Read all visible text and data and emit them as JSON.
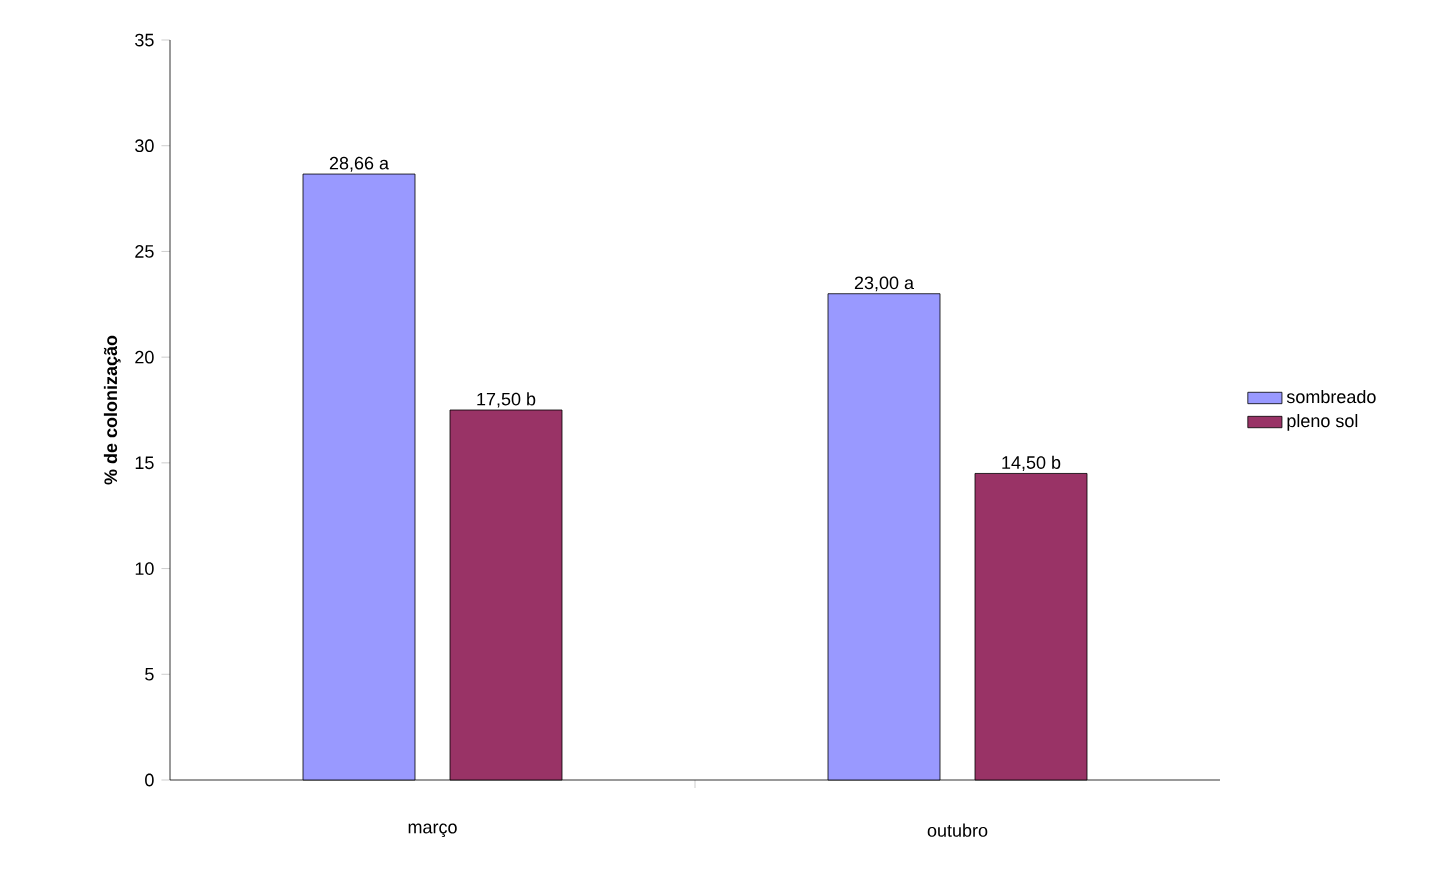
{
  "chart_data": {
    "type": "bar",
    "ylabel": "% de colonização",
    "categories": [
      "março",
      "outubro"
    ],
    "series": [
      {
        "name": "sombreado",
        "color": "#9999ff",
        "values": [
          28.66,
          23.0
        ],
        "value_labels": [
          "28,66 a",
          "23,00 a"
        ]
      },
      {
        "name": "pleno sol",
        "color": "#993366",
        "values": [
          17.5,
          14.5
        ],
        "value_labels": [
          "17,50 b",
          "14,50 b"
        ]
      }
    ],
    "ylim": [
      0,
      35
    ],
    "yticks": [
      0,
      5,
      10,
      15,
      20,
      25,
      30,
      35
    ],
    "legend": "right",
    "grid": false
  }
}
